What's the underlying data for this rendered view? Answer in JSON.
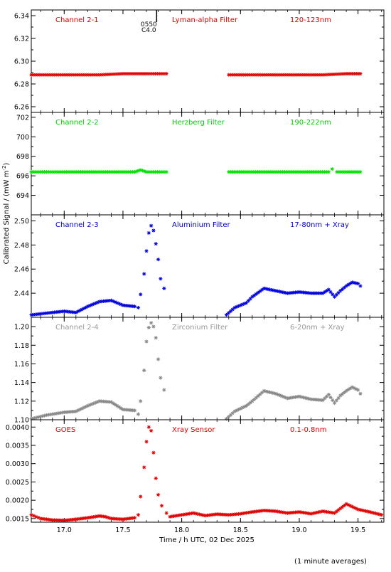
{
  "ylabel": "Calibrated Signal / (mW m",
  "ylabel_sup": "-2",
  "ylabel_close": ")",
  "xlabel": "Time / h UTC, 02 Dec 2025",
  "footnote": "(1 minute averages)",
  "flare_marker": {
    "x": 17.72,
    "label_top": "0550",
    "label_bottom": "C4.0"
  },
  "chart_data": [
    {
      "type": "scatter",
      "name_label": "Channel 2-1",
      "filter_label": "Lyman-alpha Filter",
      "band_label": "120-123nm",
      "color": "#e00000",
      "label_color": "#e00000",
      "ylim": [
        6.255,
        6.345
      ],
      "yticks": [
        6.26,
        6.28,
        6.3,
        6.32,
        6.34
      ],
      "ytick_labels": [
        "6.26",
        "6.28",
        "6.30",
        "6.32",
        "6.34"
      ],
      "segments": [
        {
          "x": [
            16.72,
            16.9,
            17.1,
            17.3,
            17.5,
            17.7,
            17.87
          ],
          "y": [
            6.288,
            6.288,
            6.288,
            6.288,
            6.289,
            6.289,
            6.289
          ]
        },
        {
          "x": [
            18.4,
            18.6,
            18.8,
            19.0,
            19.2,
            19.4,
            19.52
          ],
          "y": [
            6.288,
            6.288,
            6.288,
            6.288,
            6.288,
            6.289,
            6.289
          ]
        }
      ]
    },
    {
      "type": "scatter",
      "name_label": "Channel 2-2",
      "filter_label": "Herzberg Filter",
      "band_label": "190-222nm",
      "color": "#00e000",
      "label_color": "#00d000",
      "ylim": [
        692.0,
        702.5
      ],
      "yticks": [
        694,
        696,
        698,
        700,
        702
      ],
      "ytick_labels": [
        "694",
        "696",
        "698",
        "700",
        "702"
      ],
      "segments": [
        {
          "x": [
            16.72,
            17.0,
            17.3,
            17.6,
            17.65,
            17.7,
            17.87
          ],
          "y": [
            696.4,
            696.4,
            696.4,
            696.4,
            696.6,
            696.4,
            696.4
          ]
        },
        {
          "x": [
            18.4,
            18.7,
            19.0,
            19.25,
            19.28,
            19.32,
            19.52
          ],
          "y": [
            696.4,
            696.4,
            696.4,
            696.4,
            696.7,
            696.4,
            696.4
          ]
        }
      ]
    },
    {
      "type": "scatter",
      "name_label": "Channel 2-3",
      "filter_label": "Aluminium Filter",
      "band_label": "17-80nm + Xray",
      "color": "#0000dd",
      "label_color": "#0000cc",
      "ylim": [
        2.42,
        2.505
      ],
      "yticks": [
        2.44,
        2.46,
        2.48,
        2.5
      ],
      "ytick_labels": [
        "2.44",
        "2.46",
        "2.48",
        "2.50"
      ],
      "segments": [
        {
          "x": [
            16.72,
            16.9,
            17.0,
            17.1,
            17.2,
            17.3,
            17.4,
            17.5,
            17.6,
            17.63
          ],
          "y": [
            2.422,
            2.424,
            2.425,
            2.424,
            2.429,
            2.433,
            2.434,
            2.43,
            2.429,
            2.428
          ]
        },
        {
          "x": [
            17.65,
            17.68,
            17.7,
            17.72,
            17.74,
            17.76,
            17.78,
            17.8,
            17.82,
            17.85
          ],
          "y": [
            2.439,
            2.456,
            2.475,
            2.49,
            2.496,
            2.492,
            2.481,
            2.468,
            2.452,
            2.444
          ]
        },
        {
          "x": [
            18.38,
            18.45,
            18.55,
            18.6,
            18.7,
            18.8,
            18.9,
            19.0,
            19.1,
            19.2,
            19.25,
            19.3,
            19.35,
            19.4,
            19.45,
            19.5,
            19.52
          ],
          "y": [
            2.422,
            2.428,
            2.432,
            2.437,
            2.444,
            2.442,
            2.44,
            2.441,
            2.44,
            2.44,
            2.443,
            2.437,
            2.442,
            2.446,
            2.449,
            2.448,
            2.446
          ]
        }
      ]
    },
    {
      "type": "scatter",
      "name_label": "Channel 2-4",
      "filter_label": "Zirconium Filter",
      "band_label": "6-20nm + Xray",
      "color": "#888888",
      "label_color": "#999999",
      "ylim": [
        1.1,
        1.21
      ],
      "yticks": [
        1.1,
        1.12,
        1.14,
        1.16,
        1.18,
        1.2
      ],
      "ytick_labels": [
        "1.10",
        "1.12",
        "1.14",
        "1.16",
        "1.18",
        "1.20"
      ],
      "segments": [
        {
          "x": [
            16.72,
            16.85,
            17.0,
            17.1,
            17.2,
            17.3,
            17.4,
            17.5,
            17.6,
            17.63
          ],
          "y": [
            1.101,
            1.105,
            1.108,
            1.109,
            1.115,
            1.12,
            1.119,
            1.111,
            1.11,
            1.106
          ]
        },
        {
          "x": [
            17.65,
            17.68,
            17.7,
            17.72,
            17.74,
            17.76,
            17.78,
            17.8,
            17.82,
            17.85
          ],
          "y": [
            1.12,
            1.153,
            1.184,
            1.199,
            1.204,
            1.2,
            1.188,
            1.165,
            1.145,
            1.132
          ]
        },
        {
          "x": [
            18.38,
            18.45,
            18.55,
            18.6,
            18.7,
            18.8,
            18.9,
            19.0,
            19.1,
            19.2,
            19.25,
            19.3,
            19.35,
            19.4,
            19.45,
            19.5,
            19.52
          ],
          "y": [
            1.101,
            1.109,
            1.115,
            1.12,
            1.131,
            1.128,
            1.123,
            1.125,
            1.122,
            1.121,
            1.127,
            1.118,
            1.126,
            1.131,
            1.135,
            1.132,
            1.128
          ]
        }
      ]
    },
    {
      "type": "scatter",
      "name_label": "GOES",
      "filter_label": "Xray Sensor",
      "band_label": "0.1-0.8nm",
      "color": "#e00000",
      "label_color": "#e00000",
      "ylim": [
        0.0014,
        0.0042
      ],
      "yticks": [
        0.0015,
        0.002,
        0.0025,
        0.003,
        0.0035,
        0.004
      ],
      "ytick_labels": [
        "0.0015",
        "0.0020",
        "0.0025",
        "0.0030",
        "0.0035",
        "0.0040"
      ],
      "segments": [
        {
          "x": [
            16.72,
            16.8,
            16.9,
            17.0,
            17.1,
            17.2,
            17.3,
            17.35,
            17.4,
            17.5,
            17.6,
            17.63
          ],
          "y": [
            0.0016,
            0.0015,
            0.00146,
            0.00145,
            0.00148,
            0.00152,
            0.00157,
            0.00155,
            0.0015,
            0.00148,
            0.00152,
            0.0016
          ]
        },
        {
          "x": [
            17.65,
            17.68,
            17.7,
            17.72,
            17.74,
            17.76,
            17.78,
            17.8,
            17.83,
            17.87
          ],
          "y": [
            0.0021,
            0.0029,
            0.0036,
            0.004,
            0.0039,
            0.0033,
            0.0026,
            0.00215,
            0.00185,
            0.00165
          ]
        },
        {
          "x": [
            17.9,
            18.0,
            18.1,
            18.2,
            18.3,
            18.4,
            18.5,
            18.6,
            18.7,
            18.8,
            18.9,
            19.0,
            19.1,
            19.2,
            19.3,
            19.4,
            19.5,
            19.6,
            19.7
          ],
          "y": [
            0.00155,
            0.0016,
            0.00165,
            0.00158,
            0.00162,
            0.0016,
            0.00163,
            0.00168,
            0.00172,
            0.0017,
            0.00165,
            0.00168,
            0.00163,
            0.0017,
            0.00165,
            0.0019,
            0.00175,
            0.00168,
            0.0016
          ]
        }
      ]
    }
  ],
  "x_axis": {
    "xlim": [
      16.72,
      19.72
    ],
    "ticks": [
      17.0,
      17.5,
      18.0,
      18.5,
      19.0,
      19.5
    ],
    "tick_labels": [
      "17.0",
      "17.5",
      "18.0",
      "18.5",
      "19.0",
      "19.5"
    ]
  }
}
